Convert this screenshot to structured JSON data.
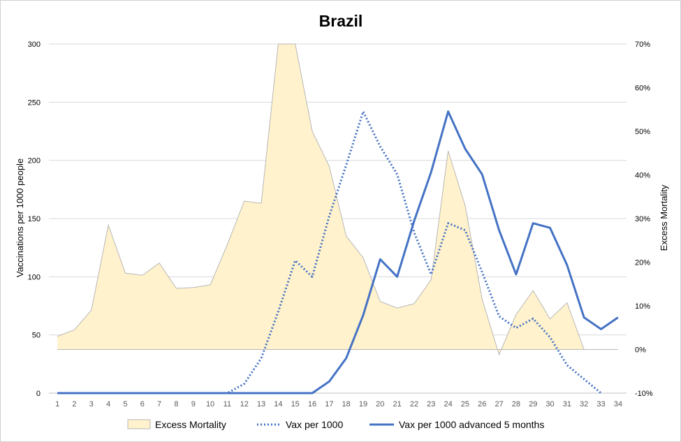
{
  "chart_data": {
    "type": "line",
    "title": "Brazil",
    "xlabel": "",
    "ylabel": "Vaccinations per 1000 people",
    "y2label": "Excess Mortality",
    "ylim": [
      0,
      300
    ],
    "y2lim": [
      -10,
      70
    ],
    "yticks": [
      "0",
      "50",
      "100",
      "150",
      "200",
      "250",
      "300"
    ],
    "y2ticks": [
      "-10%",
      "0%",
      "10%",
      "20%",
      "30%",
      "40%",
      "50%",
      "60%",
      "70%"
    ],
    "x": [
      1,
      2,
      3,
      4,
      5,
      6,
      7,
      8,
      9,
      10,
      11,
      12,
      13,
      14,
      15,
      16,
      17,
      18,
      19,
      20,
      21,
      22,
      23,
      24,
      25,
      26,
      27,
      28,
      29,
      30,
      31,
      32,
      33,
      34
    ],
    "grid": true,
    "legend_position": "bottom",
    "colors": {
      "area_fill": "#fff2cc",
      "area_stroke": "#b7b7b7",
      "line": "#4472c4",
      "grid": "#d9d9d9",
      "axis_text": "#595959"
    },
    "series": [
      {
        "name": "Excess Mortality",
        "type": "area",
        "axis": "right",
        "values": [
          3.0,
          4.5,
          9.0,
          28.5,
          17.5,
          17.0,
          19.8,
          14.0,
          14.2,
          14.8,
          24.0,
          34.0,
          33.5,
          70,
          70,
          50.0,
          42.0,
          26.0,
          21.0,
          11.0,
          9.5,
          10.5,
          16.0,
          45.5,
          33.0,
          11.5,
          -1.2,
          8.0,
          13.5,
          7.0,
          10.7,
          0,
          null,
          null
        ]
      },
      {
        "name": "Vax per 1000",
        "type": "line",
        "style": "dotted",
        "axis": "left",
        "values": [
          0,
          0,
          0,
          0,
          0,
          0,
          0,
          0,
          0,
          0,
          0,
          8,
          30,
          70,
          114,
          100,
          152,
          196,
          242,
          212,
          188,
          138,
          102,
          146,
          140,
          104,
          66,
          56,
          64,
          48,
          24,
          12,
          0,
          null
        ]
      },
      {
        "name": "Vax per 1000 advanced 5 months",
        "type": "line",
        "style": "solid",
        "axis": "left",
        "values": [
          0,
          0,
          0,
          0,
          0,
          0,
          0,
          0,
          0,
          0,
          0,
          0,
          0,
          0,
          0,
          0,
          10,
          30,
          67,
          115,
          100,
          148,
          190,
          242,
          210,
          188,
          140,
          102,
          146,
          142,
          110,
          65,
          55,
          65
        ]
      }
    ]
  }
}
